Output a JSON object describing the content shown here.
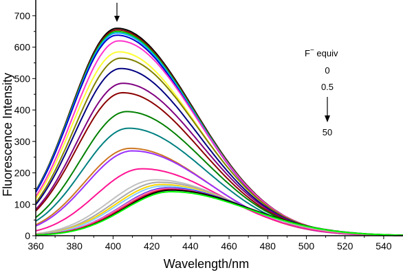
{
  "chart_data": {
    "type": "line",
    "title": "",
    "xlabel": "Wavelength/nm",
    "ylabel": "Fluorescence Intensity",
    "xlim": [
      360,
      550
    ],
    "ylim": [
      0,
      750
    ],
    "x_ticks": [
      360,
      380,
      400,
      420,
      440,
      460,
      480,
      500,
      520,
      540
    ],
    "y_ticks": [
      0,
      100,
      200,
      300,
      400,
      500,
      600,
      700
    ],
    "grid": false,
    "legend": "none",
    "annotation": {
      "header_main": "F",
      "header_sup": "−",
      "header_tail": " equiv",
      "values": [
        "0",
        "0.5",
        "50"
      ],
      "arrow_top_x": 402
    },
    "series": [
      {
        "color": "#000000",
        "peak_x": 402,
        "peak_y": 660
      },
      {
        "color": "#8b0000",
        "peak_x": 402,
        "peak_y": 655
      },
      {
        "color": "#00c000",
        "peak_x": 402,
        "peak_y": 650
      },
      {
        "color": "#00b0f0",
        "peak_x": 402,
        "peak_y": 645
      },
      {
        "color": "#0000cd",
        "peak_x": 402,
        "peak_y": 638
      },
      {
        "color": "#ff33cc",
        "peak_x": 403,
        "peak_y": 620
      },
      {
        "color": "#ffff33",
        "peak_x": 403,
        "peak_y": 585
      },
      {
        "color": "#808000",
        "peak_x": 404,
        "peak_y": 565
      },
      {
        "color": "#000080",
        "peak_x": 404,
        "peak_y": 532
      },
      {
        "color": "#800080",
        "peak_x": 405,
        "peak_y": 485
      },
      {
        "color": "#8b0000",
        "peak_x": 405,
        "peak_y": 455
      },
      {
        "color": "#008000",
        "peak_x": 407,
        "peak_y": 395
      },
      {
        "color": "#008080",
        "peak_x": 408,
        "peak_y": 342
      },
      {
        "color": "#cc7722",
        "peak_x": 409,
        "peak_y": 278
      },
      {
        "color": "#9b30ff",
        "peak_x": 410,
        "peak_y": 270
      },
      {
        "color": "#ff1493",
        "peak_x": 415,
        "peak_y": 213
      },
      {
        "color": "#c0c0c0",
        "peak_x": 422,
        "peak_y": 178
      },
      {
        "color": "#a9a9a9",
        "peak_x": 424,
        "peak_y": 170
      },
      {
        "color": "#ffd700",
        "peak_x": 425,
        "peak_y": 163
      },
      {
        "color": "#87cefa",
        "peak_x": 426,
        "peak_y": 158
      },
      {
        "color": "#0000ff",
        "peak_x": 428,
        "peak_y": 152
      },
      {
        "color": "#ff69b4",
        "peak_x": 428,
        "peak_y": 150
      },
      {
        "color": "#dc143c",
        "peak_x": 429,
        "peak_y": 147
      },
      {
        "color": "#000000",
        "peak_x": 430,
        "peak_y": 145
      },
      {
        "color": "#00ff00",
        "peak_x": 430,
        "peak_y": 140
      }
    ]
  }
}
